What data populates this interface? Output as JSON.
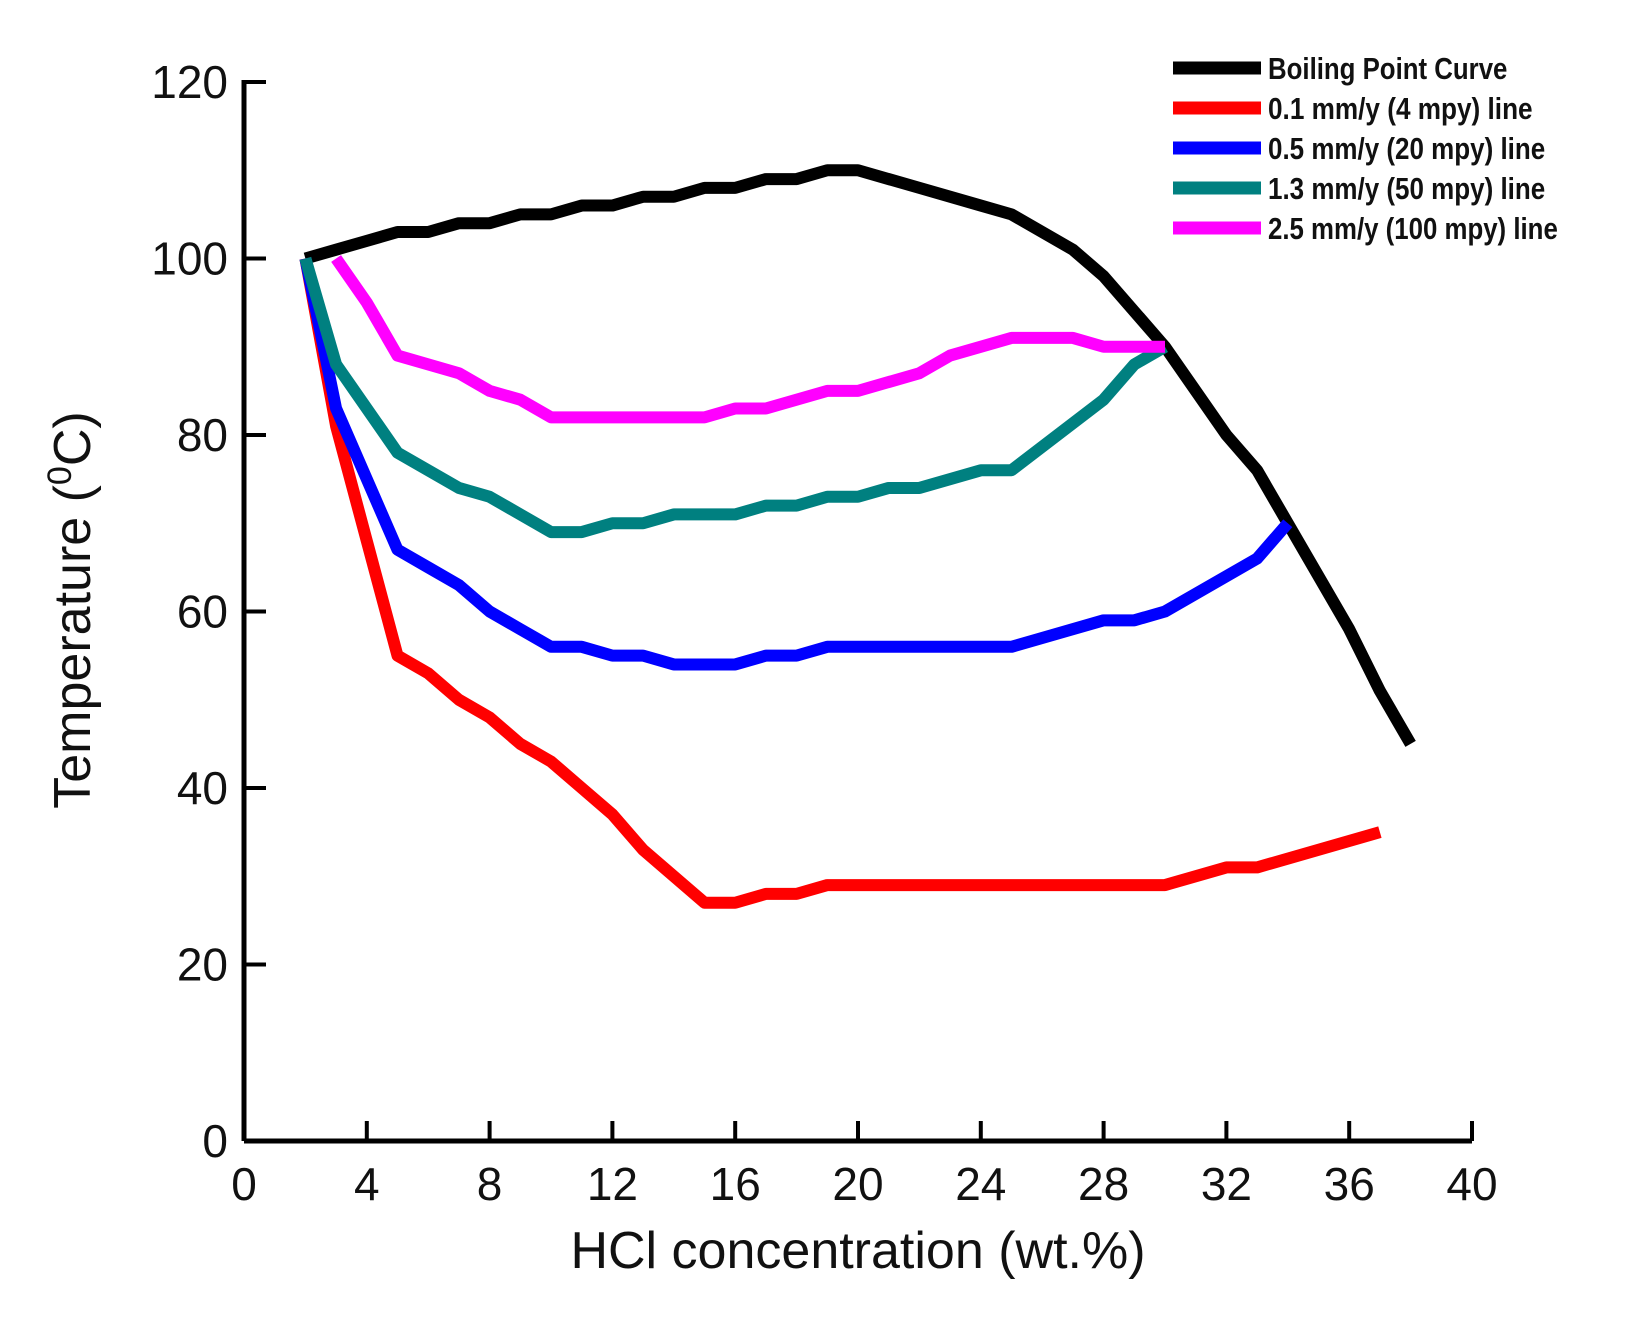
{
  "chart_data": {
    "type": "line",
    "xlabel": "HCl concentration (wt.%)",
    "ylabel": "Temperature (⁰C)",
    "ylabel_parts": {
      "before": "Temperature (",
      "sup": "0",
      "after": "C)"
    },
    "xlim": [
      0,
      40
    ],
    "ylim": [
      0,
      120
    ],
    "xticks": [
      0,
      4,
      8,
      12,
      16,
      20,
      24,
      28,
      32,
      36,
      40
    ],
    "yticks": [
      0,
      20,
      40,
      60,
      80,
      100,
      120
    ],
    "legend_position": "top-right",
    "series": [
      {
        "name": "Boiling Point Curve",
        "color": "#000000",
        "points": [
          [
            2,
            100
          ],
          [
            3,
            101
          ],
          [
            4,
            102
          ],
          [
            5,
            103
          ],
          [
            6,
            103
          ],
          [
            7,
            104
          ],
          [
            8,
            104
          ],
          [
            9,
            105
          ],
          [
            10,
            105
          ],
          [
            11,
            106
          ],
          [
            12,
            106
          ],
          [
            13,
            107
          ],
          [
            14,
            107
          ],
          [
            15,
            108
          ],
          [
            16,
            108
          ],
          [
            17,
            109
          ],
          [
            18,
            109
          ],
          [
            19,
            110
          ],
          [
            20,
            110
          ],
          [
            22,
            108
          ],
          [
            24,
            106
          ],
          [
            25,
            105
          ],
          [
            27,
            101
          ],
          [
            28,
            98
          ],
          [
            30,
            90
          ],
          [
            32,
            80
          ],
          [
            33,
            76
          ],
          [
            34,
            70
          ],
          [
            36,
            58
          ],
          [
            37,
            51
          ],
          [
            38,
            45
          ]
        ]
      },
      {
        "name": "0.1 mm/y (4 mpy) line",
        "color": "#ff0000",
        "points": [
          [
            2,
            100
          ],
          [
            3,
            81
          ],
          [
            4,
            68
          ],
          [
            5,
            55
          ],
          [
            6,
            53
          ],
          [
            7,
            50
          ],
          [
            8,
            48
          ],
          [
            9,
            45
          ],
          [
            10,
            43
          ],
          [
            11,
            40
          ],
          [
            12,
            37
          ],
          [
            13,
            33
          ],
          [
            15,
            27
          ],
          [
            16,
            27
          ],
          [
            17,
            28
          ],
          [
            18,
            28
          ],
          [
            19,
            29
          ],
          [
            25,
            29
          ],
          [
            30,
            29
          ],
          [
            32,
            31
          ],
          [
            33,
            31
          ],
          [
            37,
            35
          ]
        ]
      },
      {
        "name": "0.5 mm/y (20 mpy) line",
        "color": "#0000ff",
        "points": [
          [
            2,
            100
          ],
          [
            3,
            83
          ],
          [
            4,
            75
          ],
          [
            5,
            67
          ],
          [
            6,
            65
          ],
          [
            7,
            63
          ],
          [
            8,
            60
          ],
          [
            9,
            58
          ],
          [
            10,
            56
          ],
          [
            11,
            56
          ],
          [
            12,
            55
          ],
          [
            13,
            55
          ],
          [
            14,
            54
          ],
          [
            16,
            54
          ],
          [
            17,
            55
          ],
          [
            18,
            55
          ],
          [
            19,
            56
          ],
          [
            25,
            56
          ],
          [
            28,
            59
          ],
          [
            29,
            59
          ],
          [
            30,
            60
          ],
          [
            33,
            66
          ],
          [
            34,
            70
          ]
        ]
      },
      {
        "name": "1.3 mm/y (50 mpy) line",
        "color": "#008080",
        "points": [
          [
            2,
            100
          ],
          [
            3,
            88
          ],
          [
            5,
            78
          ],
          [
            7,
            74
          ],
          [
            8,
            73
          ],
          [
            10,
            69
          ],
          [
            11,
            69
          ],
          [
            12,
            70
          ],
          [
            13,
            70
          ],
          [
            14,
            71
          ],
          [
            16,
            71
          ],
          [
            17,
            72
          ],
          [
            18,
            72
          ],
          [
            19,
            73
          ],
          [
            20,
            73
          ],
          [
            21,
            74
          ],
          [
            22,
            74
          ],
          [
            24,
            76
          ],
          [
            25,
            76
          ],
          [
            28,
            84
          ],
          [
            29,
            88
          ],
          [
            30,
            90
          ]
        ]
      },
      {
        "name": "2.5 mm/y (100 mpy) line",
        "color": "#ff00ff",
        "points": [
          [
            3,
            100
          ],
          [
            4,
            95
          ],
          [
            5,
            89
          ],
          [
            7,
            87
          ],
          [
            8,
            85
          ],
          [
            9,
            84
          ],
          [
            10,
            82
          ],
          [
            15,
            82
          ],
          [
            16,
            83
          ],
          [
            17,
            83
          ],
          [
            19,
            85
          ],
          [
            20,
            85
          ],
          [
            22,
            87
          ],
          [
            23,
            89
          ],
          [
            25,
            91
          ],
          [
            27,
            91
          ],
          [
            28,
            90
          ],
          [
            30,
            90
          ]
        ]
      }
    ]
  }
}
